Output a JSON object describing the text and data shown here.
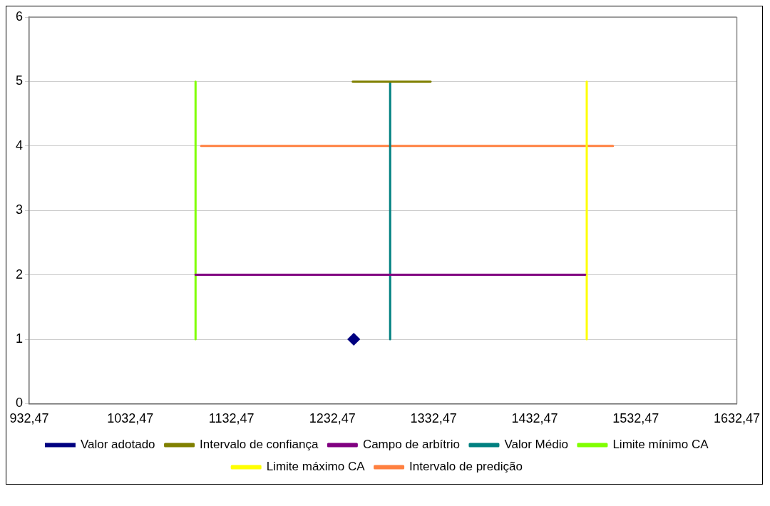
{
  "chart_data": {
    "type": "line",
    "xlim": [
      932.47,
      1632.47
    ],
    "xticks": [
      {
        "value": 932.47,
        "label": "932,47"
      },
      {
        "value": 1032.47,
        "label": "1032,47"
      },
      {
        "value": 1132.47,
        "label": "1132,47"
      },
      {
        "value": 1232.47,
        "label": "1232,47"
      },
      {
        "value": 1332.47,
        "label": "1332,47"
      },
      {
        "value": 1432.47,
        "label": "1432,47"
      },
      {
        "value": 1532.47,
        "label": "1532,47"
      },
      {
        "value": 1632.47,
        "label": "1632,47"
      }
    ],
    "ylim": [
      0,
      6
    ],
    "yticks": [
      0,
      1,
      2,
      3,
      4,
      5,
      6
    ],
    "grid": "y",
    "legend": "bottom",
    "marker": "none",
    "line_style": "solid",
    "series": [
      {
        "name": "Valor adotado",
        "type": "scatter",
        "marker": "diamond",
        "color": "#000080",
        "x": [
          1253.5
        ],
        "values": [
          1
        ]
      },
      {
        "name": "Intervalo de confiança",
        "color": "#808000",
        "x": [
          1252.5,
          1329.5
        ],
        "values": [
          5,
          5
        ]
      },
      {
        "name": "Campo de arbítrio",
        "color": "#800080",
        "x": [
          1097,
          1482.5
        ],
        "values": [
          2,
          2
        ]
      },
      {
        "name": "Valor Médio",
        "color": "#008080",
        "x": [
          1289.5,
          1289.5
        ],
        "values": [
          1,
          5
        ]
      },
      {
        "name": "Limite mínimo CA",
        "color": "#80ff00",
        "x": [
          1097,
          1097
        ],
        "values": [
          1,
          5
        ]
      },
      {
        "name": "Limite máximo CA",
        "color": "#ffff00",
        "x": [
          1484,
          1484
        ],
        "values": [
          1,
          5
        ]
      },
      {
        "name": "Intervalo de predição",
        "color": "#ff8040",
        "x": [
          1102.5,
          1510
        ],
        "values": [
          4,
          4
        ]
      }
    ]
  }
}
